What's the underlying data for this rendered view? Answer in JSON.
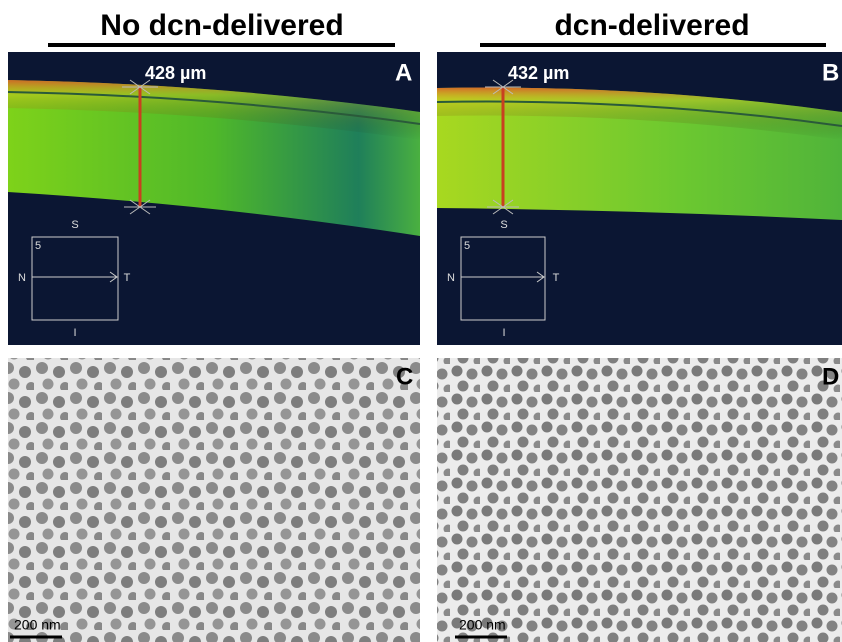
{
  "headers": [
    "No dcn-delivered",
    "dcn-delivered"
  ],
  "panels": [
    {
      "label": "A",
      "measurement": "428 µm",
      "orientation": {
        "superior": "S",
        "nasal": "N",
        "temporal": "T",
        "inferior": "I",
        "scan": "5"
      }
    },
    {
      "label": "B",
      "measurement": "432 µm",
      "orientation": {
        "superior": "S",
        "nasal": "N",
        "temporal": "T",
        "inferior": "I",
        "scan": "5"
      }
    },
    {
      "label": "C",
      "scale_bar": "200 nm"
    },
    {
      "label": "D",
      "scale_bar": "200 nm"
    }
  ]
}
